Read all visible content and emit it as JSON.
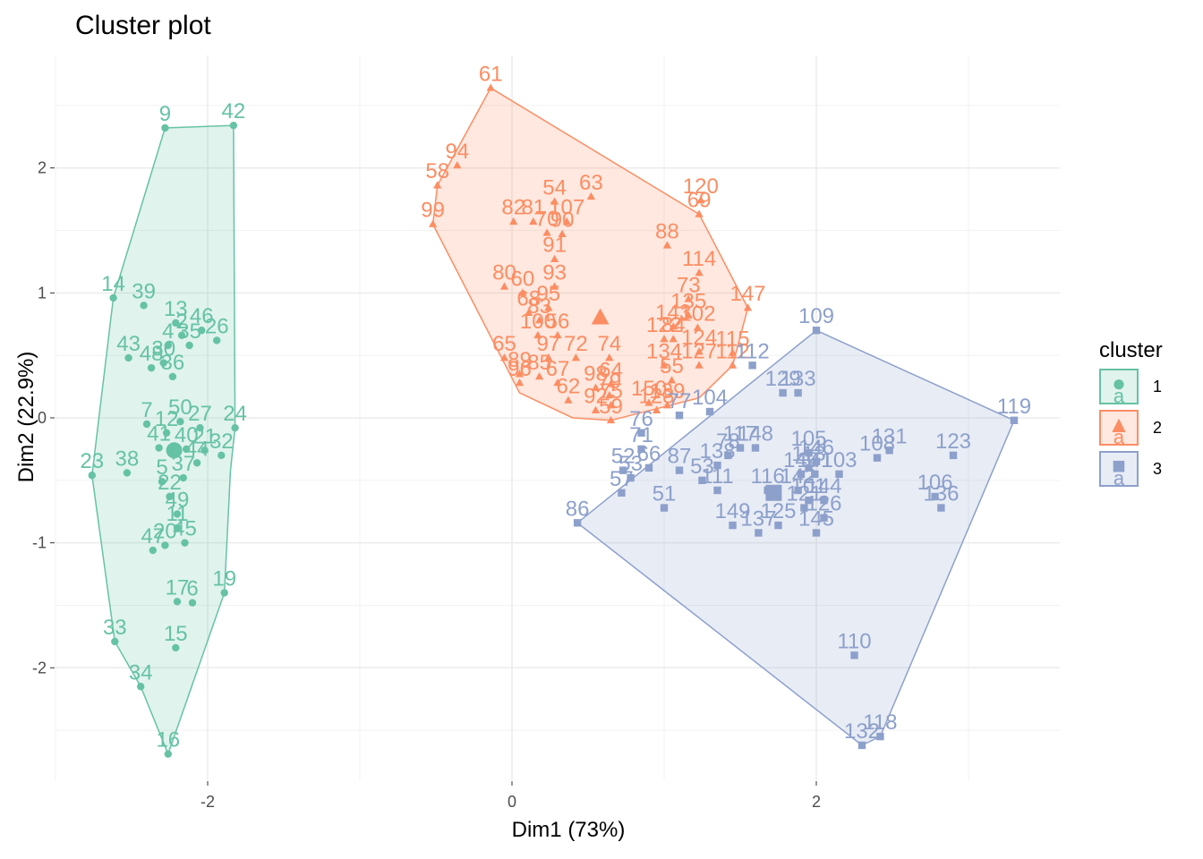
{
  "title": "Cluster plot",
  "chart_data": {
    "type": "scatter",
    "title": "Cluster plot",
    "xlabel": "Dim1 (73%)",
    "ylabel": "Dim2 (22.9%)",
    "xlim": [
      -3.0,
      3.6
    ],
    "ylim": [
      -2.9,
      2.9
    ],
    "x_ticks": [
      -2,
      0,
      2
    ],
    "y_ticks": [
      -2,
      -1,
      0,
      1,
      2
    ],
    "grid": true,
    "legend": {
      "title": "cluster",
      "position": "right",
      "key_letter": "a",
      "items": [
        {
          "label": "1",
          "color": "#66C2A5",
          "shape": "circle"
        },
        {
          "label": "2",
          "color": "#FC8D62",
          "shape": "triangle"
        },
        {
          "label": "3",
          "color": "#8DA0CB",
          "shape": "square"
        }
      ]
    },
    "series": [
      {
        "name": "1",
        "color": "#66C2A5",
        "shape": "circle",
        "hull": [
          [
            -2.28,
            2.32
          ],
          [
            -1.83,
            2.34
          ],
          [
            -1.82,
            -0.08
          ],
          [
            -1.85,
            -0.42
          ],
          [
            -1.89,
            -1.4
          ],
          [
            -2.26,
            -2.69
          ],
          [
            -2.44,
            -2.15
          ],
          [
            -2.61,
            -1.79
          ],
          [
            -2.76,
            -0.46
          ],
          [
            -2.62,
            0.96
          ]
        ],
        "centroid": [
          -2.22,
          -0.26
        ],
        "points": [
          {
            "x": -1.83,
            "y": 2.34,
            "label": "42"
          },
          {
            "x": -2.28,
            "y": 2.32,
            "label": "9"
          },
          {
            "x": -2.62,
            "y": 0.96,
            "label": "14"
          },
          {
            "x": -2.42,
            "y": 0.9,
            "label": "39"
          },
          {
            "x": -2.21,
            "y": 0.76,
            "label": "13"
          },
          {
            "x": -2.04,
            "y": 0.7,
            "label": "46"
          },
          {
            "x": -1.94,
            "y": 0.62,
            "label": "26"
          },
          {
            "x": -2.26,
            "y": 0.58,
            "label": "4"
          },
          {
            "x": -2.17,
            "y": 0.66,
            "label": "2"
          },
          {
            "x": -2.52,
            "y": 0.48,
            "label": "43"
          },
          {
            "x": -2.37,
            "y": 0.4,
            "label": "48"
          },
          {
            "x": -2.12,
            "y": 0.58,
            "label": "35"
          },
          {
            "x": -2.29,
            "y": 0.44,
            "label": "30"
          },
          {
            "x": -2.23,
            "y": 0.33,
            "label": "36"
          },
          {
            "x": -2.4,
            "y": -0.05,
            "label": "7"
          },
          {
            "x": -2.27,
            "y": -0.12,
            "label": "12"
          },
          {
            "x": -2.18,
            "y": -0.03,
            "label": "50"
          },
          {
            "x": -2.05,
            "y": -0.08,
            "label": "27"
          },
          {
            "x": -1.82,
            "y": -0.08,
            "label": "24"
          },
          {
            "x": -2.14,
            "y": -0.25,
            "label": "40"
          },
          {
            "x": -2.32,
            "y": -0.24,
            "label": "41"
          },
          {
            "x": -2.02,
            "y": -0.26,
            "label": "21"
          },
          {
            "x": -1.91,
            "y": -0.3,
            "label": "32"
          },
          {
            "x": -2.07,
            "y": -0.36,
            "label": "44"
          },
          {
            "x": -2.16,
            "y": -0.48,
            "label": "37"
          },
          {
            "x": -2.76,
            "y": -0.46,
            "label": "23"
          },
          {
            "x": -2.53,
            "y": -0.44,
            "label": "38"
          },
          {
            "x": -2.3,
            "y": -0.51,
            "label": "5"
          },
          {
            "x": -2.25,
            "y": -0.63,
            "label": "22"
          },
          {
            "x": -2.2,
            "y": -0.77,
            "label": "49"
          },
          {
            "x": -2.2,
            "y": -0.88,
            "label": "11"
          },
          {
            "x": -2.36,
            "y": -1.06,
            "label": "47"
          },
          {
            "x": -2.28,
            "y": -1.02,
            "label": "20"
          },
          {
            "x": -2.15,
            "y": -1.0,
            "label": "45"
          },
          {
            "x": -2.2,
            "y": -1.47,
            "label": "17"
          },
          {
            "x": -2.1,
            "y": -1.48,
            "label": "6"
          },
          {
            "x": -1.89,
            "y": -1.4,
            "label": "19"
          },
          {
            "x": -2.21,
            "y": -1.84,
            "label": "15"
          },
          {
            "x": -2.61,
            "y": -1.79,
            "label": "33"
          },
          {
            "x": -2.44,
            "y": -2.15,
            "label": "34"
          },
          {
            "x": -2.26,
            "y": -2.69,
            "label": "16"
          }
        ]
      },
      {
        "name": "2",
        "color": "#FC8D62",
        "shape": "triangle",
        "hull": [
          [
            -0.14,
            2.64
          ],
          [
            1.23,
            1.63
          ],
          [
            1.55,
            0.88
          ],
          [
            1.45,
            0.42
          ],
          [
            1.23,
            0.16
          ],
          [
            0.65,
            -0.02
          ],
          [
            0.4,
            0.0
          ],
          [
            0.05,
            0.2
          ],
          [
            -0.52,
            1.55
          ],
          [
            -0.49,
            1.86
          ]
        ],
        "centroid": [
          0.58,
          0.8
        ],
        "points": [
          {
            "x": -0.14,
            "y": 2.64,
            "label": "61"
          },
          {
            "x": -0.36,
            "y": 2.02,
            "label": "94"
          },
          {
            "x": -0.49,
            "y": 1.86,
            "label": "58"
          },
          {
            "x": -0.52,
            "y": 1.55,
            "label": "99"
          },
          {
            "x": 0.28,
            "y": 1.73,
            "label": "54"
          },
          {
            "x": 0.52,
            "y": 1.77,
            "label": "63"
          },
          {
            "x": 1.24,
            "y": 1.74,
            "label": "120"
          },
          {
            "x": 1.23,
            "y": 1.63,
            "label": "69"
          },
          {
            "x": 0.01,
            "y": 1.57,
            "label": "82"
          },
          {
            "x": 0.14,
            "y": 1.57,
            "label": "81"
          },
          {
            "x": 0.36,
            "y": 1.57,
            "label": "107"
          },
          {
            "x": 0.23,
            "y": 1.48,
            "label": "70"
          },
          {
            "x": 0.33,
            "y": 1.47,
            "label": "90"
          },
          {
            "x": 1.02,
            "y": 1.38,
            "label": "88"
          },
          {
            "x": 0.28,
            "y": 1.27,
            "label": "91"
          },
          {
            "x": 1.23,
            "y": 1.16,
            "label": "114"
          },
          {
            "x": -0.05,
            "y": 1.05,
            "label": "80"
          },
          {
            "x": 0.07,
            "y": 1.0,
            "label": "60"
          },
          {
            "x": 0.28,
            "y": 1.05,
            "label": "93"
          },
          {
            "x": 1.16,
            "y": 0.95,
            "label": "73"
          },
          {
            "x": 1.55,
            "y": 0.88,
            "label": "147"
          },
          {
            "x": 0.24,
            "y": 0.88,
            "label": "95"
          },
          {
            "x": 1.16,
            "y": 0.82,
            "label": "135"
          },
          {
            "x": 0.11,
            "y": 0.84,
            "label": "68"
          },
          {
            "x": 0.18,
            "y": 0.78,
            "label": "83"
          },
          {
            "x": 1.06,
            "y": 0.73,
            "label": "143"
          },
          {
            "x": 1.22,
            "y": 0.72,
            "label": "102"
          },
          {
            "x": 0.17,
            "y": 0.66,
            "label": "100"
          },
          {
            "x": 0.3,
            "y": 0.66,
            "label": "56"
          },
          {
            "x": 1.0,
            "y": 0.63,
            "label": "122"
          },
          {
            "x": 1.06,
            "y": 0.63,
            "label": "84"
          },
          {
            "x": 1.23,
            "y": 0.53,
            "label": "124"
          },
          {
            "x": 1.45,
            "y": 0.52,
            "label": "115"
          },
          {
            "x": -0.05,
            "y": 0.48,
            "label": "65"
          },
          {
            "x": 0.24,
            "y": 0.48,
            "label": "97"
          },
          {
            "x": 0.42,
            "y": 0.48,
            "label": "72"
          },
          {
            "x": 0.64,
            "y": 0.48,
            "label": "74"
          },
          {
            "x": 1.0,
            "y": 0.42,
            "label": "134"
          },
          {
            "x": 1.23,
            "y": 0.42,
            "label": "127"
          },
          {
            "x": 1.45,
            "y": 0.42,
            "label": "112"
          },
          {
            "x": 0.05,
            "y": 0.35,
            "label": "89"
          },
          {
            "x": 0.18,
            "y": 0.33,
            "label": "85"
          },
          {
            "x": 0.05,
            "y": 0.28,
            "label": "96"
          },
          {
            "x": 0.3,
            "y": 0.28,
            "label": "67"
          },
          {
            "x": 1.05,
            "y": 0.3,
            "label": "55"
          },
          {
            "x": 0.55,
            "y": 0.24,
            "label": "98"
          },
          {
            "x": 0.65,
            "y": 0.27,
            "label": "64"
          },
          {
            "x": 0.64,
            "y": 0.18,
            "label": "79"
          },
          {
            "x": 0.37,
            "y": 0.14,
            "label": "62"
          },
          {
            "x": 0.65,
            "y": 0.1,
            "label": "75"
          },
          {
            "x": 0.9,
            "y": 0.12,
            "label": "150"
          },
          {
            "x": 1.02,
            "y": 0.1,
            "label": "139"
          },
          {
            "x": 0.55,
            "y": 0.06,
            "label": "92"
          },
          {
            "x": 0.95,
            "y": 0.06,
            "label": "128"
          },
          {
            "x": 0.65,
            "y": -0.02,
            "label": "59"
          }
        ]
      },
      {
        "name": "3",
        "color": "#8DA0CB",
        "shape": "square",
        "hull": [
          [
            2.0,
            0.7
          ],
          [
            3.3,
            -0.02
          ],
          [
            2.42,
            -2.55
          ],
          [
            2.3,
            -2.62
          ],
          [
            0.43,
            -0.84
          ]
        ],
        "centroid": [
          1.72,
          -0.6
        ],
        "points": [
          {
            "x": 2.0,
            "y": 0.7,
            "label": "109"
          },
          {
            "x": 3.3,
            "y": -0.02,
            "label": "119"
          },
          {
            "x": 1.58,
            "y": 0.42,
            "label": "112"
          },
          {
            "x": 1.78,
            "y": 0.2,
            "label": "129"
          },
          {
            "x": 1.88,
            "y": 0.2,
            "label": "133"
          },
          {
            "x": 1.3,
            "y": 0.05,
            "label": "104"
          },
          {
            "x": 1.1,
            "y": 0.02,
            "label": "77"
          },
          {
            "x": 0.85,
            "y": -0.12,
            "label": "76"
          },
          {
            "x": 2.48,
            "y": -0.26,
            "label": "131"
          },
          {
            "x": 1.5,
            "y": -0.24,
            "label": "117"
          },
          {
            "x": 1.6,
            "y": -0.24,
            "label": "148"
          },
          {
            "x": 1.42,
            "y": -0.3,
            "label": "78"
          },
          {
            "x": 1.95,
            "y": -0.28,
            "label": "105"
          },
          {
            "x": 2.0,
            "y": -0.35,
            "label": "146"
          },
          {
            "x": 0.85,
            "y": -0.25,
            "label": "71"
          },
          {
            "x": 2.4,
            "y": -0.32,
            "label": "108"
          },
          {
            "x": 2.9,
            "y": -0.3,
            "label": "123"
          },
          {
            "x": 1.35,
            "y": -0.38,
            "label": "138"
          },
          {
            "x": 1.95,
            "y": -0.4,
            "label": "113"
          },
          {
            "x": 0.9,
            "y": -0.4,
            "label": "66"
          },
          {
            "x": 1.1,
            "y": -0.42,
            "label": "87"
          },
          {
            "x": 2.15,
            "y": -0.45,
            "label": "103"
          },
          {
            "x": 0.73,
            "y": -0.42,
            "label": "52"
          },
          {
            "x": 0.78,
            "y": -0.48,
            "label": "53"
          },
          {
            "x": 1.9,
            "y": -0.45,
            "label": "140"
          },
          {
            "x": 1.99,
            "y": -0.45,
            "label": "141"
          },
          {
            "x": 1.25,
            "y": -0.5,
            "label": "53"
          },
          {
            "x": 1.35,
            "y": -0.58,
            "label": "111"
          },
          {
            "x": 1.68,
            "y": -0.58,
            "label": "116"
          },
          {
            "x": 1.88,
            "y": -0.58,
            "label": "142"
          },
          {
            "x": 2.78,
            "y": -0.63,
            "label": "106"
          },
          {
            "x": 2.82,
            "y": -0.72,
            "label": "136"
          },
          {
            "x": 0.72,
            "y": -0.6,
            "label": "57"
          },
          {
            "x": 1.95,
            "y": -0.66,
            "label": "101"
          },
          {
            "x": 2.05,
            "y": -0.66,
            "label": "144"
          },
          {
            "x": 1.0,
            "y": -0.72,
            "label": "51"
          },
          {
            "x": 1.92,
            "y": -0.72,
            "label": "121"
          },
          {
            "x": 2.05,
            "y": -0.8,
            "label": "126"
          },
          {
            "x": 0.43,
            "y": -0.84,
            "label": "86"
          },
          {
            "x": 1.45,
            "y": -0.86,
            "label": "149"
          },
          {
            "x": 1.62,
            "y": -0.92,
            "label": "137"
          },
          {
            "x": 1.75,
            "y": -0.86,
            "label": "125"
          },
          {
            "x": 2.0,
            "y": -0.92,
            "label": "145"
          },
          {
            "x": 2.25,
            "y": -1.9,
            "label": "110"
          },
          {
            "x": 2.42,
            "y": -2.55,
            "label": "118"
          },
          {
            "x": 2.3,
            "y": -2.62,
            "label": "132"
          }
        ]
      }
    ]
  }
}
